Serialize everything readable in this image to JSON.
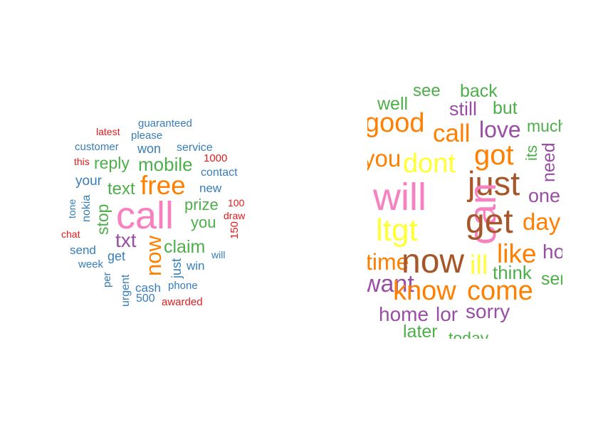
{
  "palette": {
    "red": "#E41A1C",
    "blue": "#377EB8",
    "green": "#4DAF4A",
    "purple": "#984EA3",
    "orange": "#FF7F00",
    "yellow": "#FFFF33",
    "brown": "#A65628",
    "pink": "#F781BF"
  },
  "clouds": [
    {
      "id": "cloud-spam",
      "words": [
        {
          "text": "guaranteed",
          "color": "blue"
        },
        {
          "text": "latest",
          "color": "red"
        },
        {
          "text": "please",
          "color": "blue"
        },
        {
          "text": "customer",
          "color": "blue"
        },
        {
          "text": "won",
          "color": "blue"
        },
        {
          "text": "service",
          "color": "blue"
        },
        {
          "text": "this",
          "color": "red"
        },
        {
          "text": "1000",
          "color": "red"
        },
        {
          "text": "reply",
          "color": "green"
        },
        {
          "text": "mobile",
          "color": "green"
        },
        {
          "text": "contact",
          "color": "blue"
        },
        {
          "text": "your",
          "color": "blue"
        },
        {
          "text": "free",
          "color": "orange"
        },
        {
          "text": "text",
          "color": "green"
        },
        {
          "text": "new",
          "color": "blue"
        },
        {
          "text": "tone",
          "color": "blue"
        },
        {
          "text": "nokia",
          "color": "blue"
        },
        {
          "text": "stop",
          "color": "green"
        },
        {
          "text": "call",
          "color": "pink"
        },
        {
          "text": "prize",
          "color": "green"
        },
        {
          "text": "100",
          "color": "red"
        },
        {
          "text": "draw",
          "color": "red"
        },
        {
          "text": "you",
          "color": "green"
        },
        {
          "text": "150",
          "color": "red"
        },
        {
          "text": "chat",
          "color": "red"
        },
        {
          "text": "txt",
          "color": "purple"
        },
        {
          "text": "now",
          "color": "orange"
        },
        {
          "text": "claim",
          "color": "green"
        },
        {
          "text": "send",
          "color": "blue"
        },
        {
          "text": "get",
          "color": "blue"
        },
        {
          "text": "just",
          "color": "blue"
        },
        {
          "text": "will",
          "color": "blue"
        },
        {
          "text": "week",
          "color": "blue"
        },
        {
          "text": "win",
          "color": "blue"
        },
        {
          "text": "per",
          "color": "blue"
        },
        {
          "text": "urgent",
          "color": "blue"
        },
        {
          "text": "cash",
          "color": "blue"
        },
        {
          "text": "phone",
          "color": "blue"
        },
        {
          "text": "500",
          "color": "blue"
        },
        {
          "text": "awarded",
          "color": "red"
        }
      ]
    },
    {
      "id": "cloud-ham",
      "words": [
        {
          "text": "see",
          "color": "green"
        },
        {
          "text": "back",
          "color": "green"
        },
        {
          "text": "well",
          "color": "green"
        },
        {
          "text": "still",
          "color": "purple"
        },
        {
          "text": "but",
          "color": "green"
        },
        {
          "text": "good",
          "color": "orange"
        },
        {
          "text": "much",
          "color": "green"
        },
        {
          "text": "call",
          "color": "orange"
        },
        {
          "text": "love",
          "color": "purple"
        },
        {
          "text": "got",
          "color": "orange"
        },
        {
          "text": "its",
          "color": "green"
        },
        {
          "text": "need",
          "color": "purple"
        },
        {
          "text": "you",
          "color": "orange"
        },
        {
          "text": "dont",
          "color": "yellow"
        },
        {
          "text": "just",
          "color": "brown"
        },
        {
          "text": "will",
          "color": "pink"
        },
        {
          "text": "can",
          "color": "pink"
        },
        {
          "text": "one",
          "color": "purple"
        },
        {
          "text": "get",
          "color": "brown"
        },
        {
          "text": "ltgt",
          "color": "yellow"
        },
        {
          "text": "day",
          "color": "orange"
        },
        {
          "text": "like",
          "color": "orange"
        },
        {
          "text": "how",
          "color": "purple"
        },
        {
          "text": "time",
          "color": "orange"
        },
        {
          "text": "now",
          "color": "brown"
        },
        {
          "text": "ill",
          "color": "yellow"
        },
        {
          "text": "want",
          "color": "purple"
        },
        {
          "text": "think",
          "color": "green"
        },
        {
          "text": "send",
          "color": "green"
        },
        {
          "text": "know",
          "color": "orange"
        },
        {
          "text": "come",
          "color": "orange"
        },
        {
          "text": "home",
          "color": "purple"
        },
        {
          "text": "lor",
          "color": "purple"
        },
        {
          "text": "sorry",
          "color": "purple"
        },
        {
          "text": "later",
          "color": "green"
        },
        {
          "text": "today",
          "color": "green"
        }
      ]
    }
  ]
}
